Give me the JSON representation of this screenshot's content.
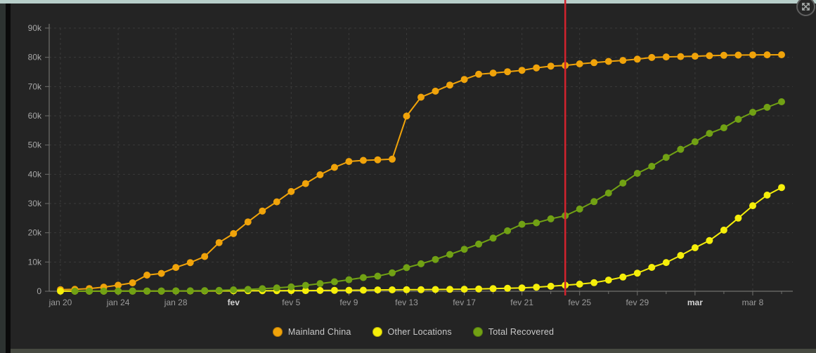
{
  "theme": {
    "panel_background": "#242424",
    "grid_color": "#3a3a3a",
    "axis_color": "#71716e",
    "label_color": "#9b9b9b",
    "top_border_color": "#b8cfca"
  },
  "chart_data": {
    "type": "line",
    "x": [
      "jan 20",
      "jan 21",
      "jan 22",
      "jan 23",
      "jan 24",
      "jan 25",
      "jan 26",
      "jan 27",
      "jan 28",
      "jan 29",
      "jan 30",
      "jan 31",
      "fev 1",
      "fev 2",
      "fev 3",
      "fev 4",
      "fev 5",
      "fev 6",
      "fev 7",
      "fev 8",
      "fev 9",
      "fev 10",
      "fev 11",
      "fev 12",
      "fev 13",
      "fev 14",
      "fev 15",
      "fev 16",
      "fev 17",
      "fev 18",
      "fev 19",
      "fev 20",
      "fev 21",
      "fev 22",
      "fev 23",
      "fev 24",
      "fev 25",
      "fev 26",
      "fev 27",
      "fev 28",
      "fev 29",
      "mar 1",
      "mar 2",
      "mar 3",
      "mar 4",
      "mar 5",
      "mar 6",
      "mar 7",
      "mar 8",
      "mar 9",
      "mar 10"
    ],
    "series": [
      {
        "name": "Mainland China",
        "color": "#f0a30a",
        "values": [
          548,
          643,
          920,
          1406,
          2075,
          2877,
          5509,
          6087,
          8141,
          9802,
          11891,
          16630,
          19716,
          23707,
          27440,
          30587,
          34110,
          36814,
          39829,
          42354,
          44386,
          44759,
          44942,
          45171,
          59895,
          66358,
          68413,
          70513,
          72434,
          74211,
          74619,
          75077,
          75550,
          76392,
          77001,
          77241,
          77754,
          78166,
          78600,
          78928,
          79356,
          79932,
          80136,
          80261,
          80386,
          80537,
          80690,
          80770,
          80823,
          80860,
          80887
        ]
      },
      {
        "name": "Other Locations",
        "color": "#f5ee0a",
        "values": [
          14,
          17,
          25,
          28,
          37,
          45,
          55,
          66,
          84,
          105,
          118,
          130,
          145,
          173,
          183,
          188,
          212,
          227,
          265,
          317,
          343,
          361,
          457,
          476,
          523,
          538,
          595,
          654,
          685,
          780,
          896,
          999,
          1124,
          1385,
          1715,
          2055,
          2429,
          2918,
          3823,
          4846,
          6197,
          8162,
          9828,
          12234,
          14890,
          17330,
          20900,
          25010,
          29250,
          32880,
          35480
        ]
      },
      {
        "name": "Total Recovered",
        "color": "#71a114",
        "values": [
          null,
          28,
          30,
          36,
          39,
          52,
          61,
          107,
          126,
          143,
          222,
          284,
          472,
          623,
          852,
          1124,
          1487,
          2011,
          2616,
          3244,
          3946,
          4683,
          5150,
          6295,
          8058,
          9395,
          10865,
          12583,
          14352,
          16121,
          18177,
          20659,
          22886,
          23394,
          24757,
          25827,
          28110,
          30660,
          33570,
          36980,
          40320,
          42710,
          45800,
          48520,
          51130,
          53980,
          55900,
          58800,
          61210,
          62900,
          64800
        ]
      }
    ],
    "ylim": [
      0,
      90000
    ],
    "yticks": [
      {
        "v": 0,
        "label": "0"
      },
      {
        "v": 10000,
        "label": "10k"
      },
      {
        "v": 20000,
        "label": "20k"
      },
      {
        "v": 30000,
        "label": "30k"
      },
      {
        "v": 40000,
        "label": "40k"
      },
      {
        "v": 50000,
        "label": "50k"
      },
      {
        "v": 60000,
        "label": "60k"
      },
      {
        "v": 70000,
        "label": "70k"
      },
      {
        "v": 80000,
        "label": "80k"
      },
      {
        "v": 90000,
        "label": "90k"
      }
    ],
    "xticks": [
      {
        "i": 0,
        "label": "jan 20",
        "bold": false
      },
      {
        "i": 4,
        "label": "jan 24",
        "bold": false
      },
      {
        "i": 8,
        "label": "jan 28",
        "bold": false
      },
      {
        "i": 12,
        "label": "fev",
        "bold": true
      },
      {
        "i": 16,
        "label": "fev 5",
        "bold": false
      },
      {
        "i": 20,
        "label": "fev 9",
        "bold": false
      },
      {
        "i": 24,
        "label": "fev 13",
        "bold": false
      },
      {
        "i": 28,
        "label": "fev 17",
        "bold": false
      },
      {
        "i": 32,
        "label": "fev 21",
        "bold": false
      },
      {
        "i": 36,
        "label": "fev 25",
        "bold": false
      },
      {
        "i": 40,
        "label": "fev 29",
        "bold": false
      },
      {
        "i": 44,
        "label": "mar",
        "bold": true
      },
      {
        "i": 48,
        "label": "mar 8",
        "bold": false
      }
    ],
    "grid": true,
    "legend_position": "bottom",
    "annotation": {
      "type": "vline",
      "x_index": 35,
      "x_date": "fev 24",
      "color": "#d2232e"
    }
  }
}
